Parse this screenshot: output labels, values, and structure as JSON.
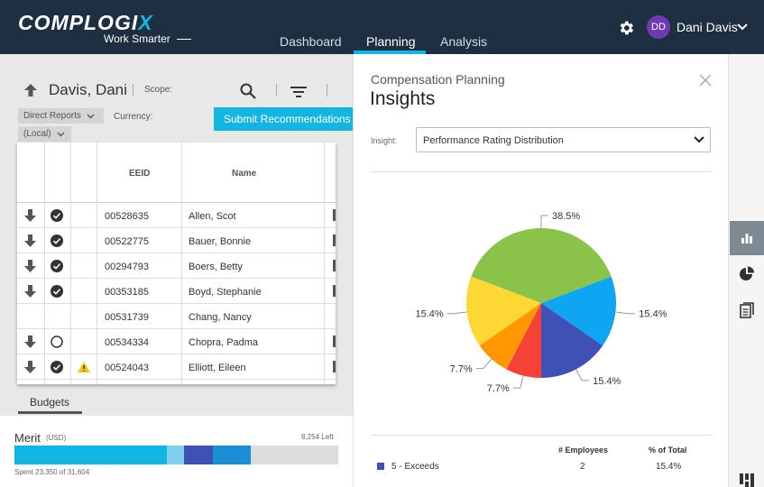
{
  "header": {
    "logo_text": "COMPLOGI",
    "logo_x": "X",
    "tagline": "Work Smarter",
    "nav": [
      {
        "label": "Dashboard"
      },
      {
        "label": "Planning",
        "active": true
      },
      {
        "label": "Analysis"
      }
    ],
    "user_initials": "DD",
    "user_name": "Dani Davis",
    "avatar_color": "#6e3bb5"
  },
  "left": {
    "employee_name": "Davis, Dani",
    "scope_label": "Scope:",
    "scope_value": "Direct Reports",
    "currency_label": "Currency:",
    "currency_value": "(Local)",
    "submit_label": "Submit Recommendations",
    "columns": [
      "EEID",
      "Name"
    ],
    "rows": [
      {
        "arrow": true,
        "check": "checked",
        "warn": false,
        "eeid": "00528635",
        "name": "Allen, Scot"
      },
      {
        "arrow": true,
        "check": "checked",
        "warn": false,
        "eeid": "00522775",
        "name": "Bauer, Bonnie"
      },
      {
        "arrow": true,
        "check": "checked",
        "warn": false,
        "eeid": "00294793",
        "name": "Boers, Betty"
      },
      {
        "arrow": true,
        "check": "checked",
        "warn": false,
        "eeid": "00353185",
        "name": "Boyd, Stephanie"
      },
      {
        "arrow": false,
        "check": "none",
        "warn": false,
        "eeid": "00531739",
        "name": "Chang, Nancy"
      },
      {
        "arrow": true,
        "check": "empty",
        "warn": false,
        "eeid": "00534334",
        "name": "Chopra, Padma"
      },
      {
        "arrow": true,
        "check": "checked",
        "warn": true,
        "eeid": "00524043",
        "name": "Elliott, Eileen"
      }
    ],
    "budgets_tab": "Budgets",
    "merit": {
      "label": "Merit",
      "unit": "(USD)",
      "left_text": "8,254 Left",
      "spent_text": "Spent 23,350 of 31,604",
      "spent": 23350,
      "total": 31604,
      "segments": [
        {
          "fraction": 0.472,
          "color": "#13b6e0"
        },
        {
          "fraction": 0.052,
          "color": "#7ed0ec"
        },
        {
          "fraction": 0.089,
          "color": "#3f51b5"
        },
        {
          "fraction": 0.118,
          "color": "#1a8fd6"
        }
      ]
    }
  },
  "insights": {
    "subtitle": "Compensation Planning",
    "title": "Insights",
    "insight_label": "Insight:",
    "insight_value": "Performance Rating Distribution",
    "table_headers": [
      "# Employees",
      "% of Total"
    ],
    "legend": [
      {
        "name": "5 - Exceeds",
        "count": "2",
        "pct": "15.4%",
        "color": "#3f51b5"
      }
    ]
  },
  "chart_data": {
    "type": "pie",
    "title": "",
    "slices": [
      {
        "value": 15.4,
        "label": "15.4%",
        "color": "#3f51b5"
      },
      {
        "value": 15.4,
        "label": "15.4%",
        "color": "#0ea5f2"
      },
      {
        "value": 38.5,
        "label": "38.5%",
        "color": "#8bc34a"
      },
      {
        "value": 15.4,
        "label": "15.4%",
        "color": "#fdd835"
      },
      {
        "value": 7.7,
        "label": "7.7%",
        "color": "#ff9800"
      },
      {
        "value": 7.7,
        "label": "7.7%",
        "color": "#f44336"
      }
    ]
  },
  "rail": {
    "icons": [
      "bar-chart-icon",
      "pie-chart-icon",
      "document-icon",
      "grid-icon"
    ]
  }
}
